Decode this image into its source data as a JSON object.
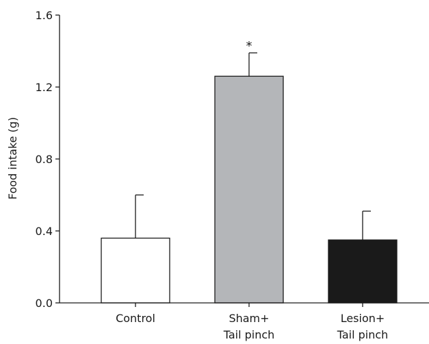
{
  "chart_data": {
    "type": "bar",
    "title": "",
    "xlabel": "",
    "ylabel": "Food intake (g)",
    "ylim": [
      0,
      1.6
    ],
    "yticks": [
      "0.0",
      "0.4",
      "0.8",
      "1.2",
      "1.6"
    ],
    "categories": [
      [
        "Control"
      ],
      [
        "Sham+",
        "Tail pinch"
      ],
      [
        "Lesion+",
        "Tail pinch"
      ]
    ],
    "values": [
      0.36,
      1.26,
      0.35
    ],
    "error_upper": [
      0.24,
      0.13,
      0.16
    ],
    "bar_colors": [
      "#ffffff",
      "#b4b6b9",
      "#1a1a1a"
    ],
    "annotations": [
      "",
      "*",
      ""
    ],
    "grid": false
  }
}
